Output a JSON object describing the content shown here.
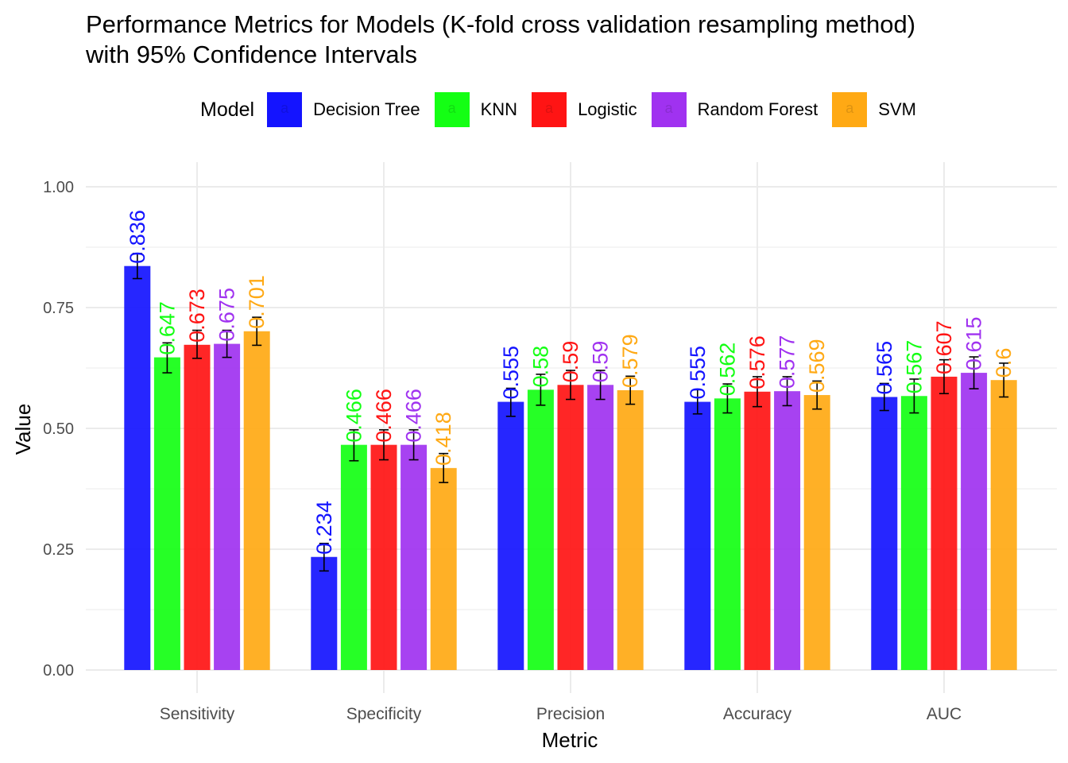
{
  "title": {
    "line1": "Performance Metrics for Models (K-fold cross validation resampling method)",
    "line2": "with 95% Confidence Intervals"
  },
  "legend": {
    "title": "Model",
    "position": "top",
    "items": [
      {
        "label": "Decision Tree",
        "color": "#1414FF",
        "key_glyph": "a"
      },
      {
        "label": "KNN",
        "color": "#14FF14",
        "key_glyph": "a"
      },
      {
        "label": "Logistic",
        "color": "#FF1414",
        "key_glyph": "a"
      },
      {
        "label": "Random Forest",
        "color": "#A032F0",
        "key_glyph": "a"
      },
      {
        "label": "SVM",
        "color": "#FFA914",
        "key_glyph": "a"
      }
    ]
  },
  "chart_data": {
    "type": "bar",
    "xlabel": "Metric",
    "ylabel": "Value",
    "ylim": [
      0,
      1
    ],
    "yticks": [
      "0.00",
      "0.25",
      "0.50",
      "0.75",
      "1.00"
    ],
    "grid": true,
    "categories": [
      "Sensitivity",
      "Specificity",
      "Precision",
      "Accuracy",
      "AUC"
    ],
    "series": [
      {
        "name": "Decision Tree",
        "color": "#1414FF",
        "values": [
          0.836,
          0.234,
          0.555,
          0.555,
          0.565
        ],
        "labels": [
          "0.836",
          "0.234",
          "0.555",
          "0.555",
          "0.565"
        ],
        "ci_low": [
          0.81,
          0.205,
          0.525,
          0.53,
          0.537
        ],
        "ci_high": [
          0.862,
          0.262,
          0.583,
          0.58,
          0.593
        ]
      },
      {
        "name": "KNN",
        "color": "#14FF14",
        "values": [
          0.647,
          0.466,
          0.58,
          0.562,
          0.567
        ],
        "labels": [
          "0.647",
          "0.466",
          "0.58",
          "0.562",
          "0.567"
        ],
        "ci_low": [
          0.615,
          0.433,
          0.548,
          0.532,
          0.532
        ],
        "ci_high": [
          0.677,
          0.497,
          0.612,
          0.592,
          0.602
        ]
      },
      {
        "name": "Logistic",
        "color": "#FF1414",
        "values": [
          0.673,
          0.466,
          0.59,
          0.576,
          0.607
        ],
        "labels": [
          "0.673",
          "0.466",
          "0.59",
          "0.576",
          "0.607"
        ],
        "ci_low": [
          0.645,
          0.435,
          0.56,
          0.545,
          0.572
        ],
        "ci_high": [
          0.703,
          0.497,
          0.62,
          0.607,
          0.642
        ]
      },
      {
        "name": "Random Forest",
        "color": "#A032F0",
        "values": [
          0.675,
          0.466,
          0.59,
          0.577,
          0.615
        ],
        "labels": [
          "0.675",
          "0.466",
          "0.59",
          "0.577",
          "0.615"
        ],
        "ci_low": [
          0.647,
          0.435,
          0.56,
          0.547,
          0.582
        ],
        "ci_high": [
          0.703,
          0.497,
          0.62,
          0.607,
          0.648
        ]
      },
      {
        "name": "SVM",
        "color": "#FFA914",
        "values": [
          0.701,
          0.418,
          0.579,
          0.569,
          0.6
        ],
        "labels": [
          "0.701",
          "0.418",
          "0.579",
          "0.569",
          "0.6"
        ],
        "ci_low": [
          0.672,
          0.388,
          0.55,
          0.54,
          0.565
        ],
        "ci_high": [
          0.73,
          0.448,
          0.608,
          0.598,
          0.635
        ]
      }
    ]
  }
}
